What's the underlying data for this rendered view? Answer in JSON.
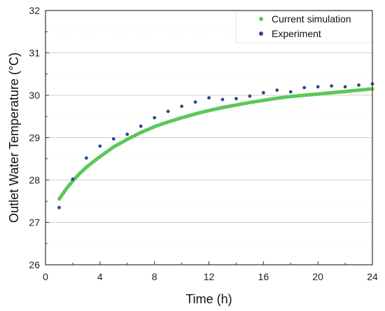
{
  "chart_data": {
    "type": "scatter",
    "title": "",
    "xlabel": "Time (h)",
    "ylabel": "Outlet Water Temperature (°C)",
    "xlim": [
      0,
      24
    ],
    "ylim": [
      26,
      32
    ],
    "x_ticks": [
      "0",
      "4",
      "8",
      "12",
      "16",
      "20",
      "24"
    ],
    "y_ticks": [
      "26",
      "27",
      "28",
      "29",
      "30",
      "31",
      "32"
    ],
    "grid": "horizontal",
    "legend_position": "top-right",
    "series": [
      {
        "name": "Current simulation",
        "color": "#5ac85a",
        "style": "thick-line",
        "x": [
          1,
          1.5,
          2,
          2.5,
          3,
          3.5,
          4,
          5,
          6,
          7,
          8,
          9,
          10,
          11,
          12,
          13,
          14,
          15,
          16,
          17,
          18,
          19,
          20,
          21,
          22,
          23,
          24
        ],
        "values": [
          27.55,
          27.78,
          27.98,
          28.15,
          28.3,
          28.43,
          28.55,
          28.78,
          28.96,
          29.12,
          29.26,
          29.37,
          29.47,
          29.56,
          29.64,
          29.71,
          29.77,
          29.83,
          29.88,
          29.93,
          29.97,
          30.0,
          30.03,
          30.06,
          30.09,
          30.12,
          30.15
        ]
      },
      {
        "name": "Experiment",
        "color": "#2e4a8a",
        "style": "dots",
        "x": [
          1,
          2,
          3,
          4,
          5,
          6,
          7,
          8,
          9,
          10,
          11,
          12,
          13,
          14,
          15,
          16,
          17,
          18,
          19,
          20,
          21,
          22,
          23,
          24
        ],
        "values": [
          27.35,
          28.02,
          28.52,
          28.8,
          28.97,
          29.08,
          29.27,
          29.47,
          29.62,
          29.74,
          29.84,
          29.94,
          29.9,
          29.92,
          29.98,
          30.06,
          30.12,
          30.08,
          30.18,
          30.2,
          30.22,
          30.2,
          30.24,
          30.27
        ]
      }
    ]
  }
}
